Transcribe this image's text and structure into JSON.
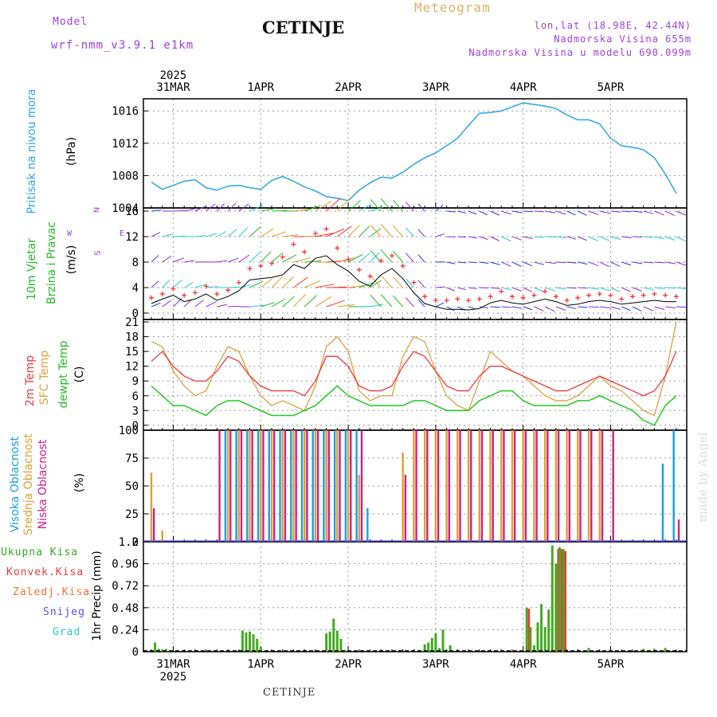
{
  "header": {
    "model_label": "Model",
    "model_name": "wrf-nmm_v3.9.1 e1km",
    "station": "CETINJE",
    "meteogram": "Meteogram",
    "lonlat": "lon,lat (18.98E, 42.44N)",
    "elev": "Nadmorska Visina 655m",
    "elev_model": "Nadmorska Visina u modelu 690.099m"
  },
  "footer": {
    "station": "CETINJE",
    "credit": "made by Angel"
  },
  "colors": {
    "pressure": "#2aa6e6",
    "wind_black": "#000000",
    "wind_gust": "#ff3030",
    "t2m": "#ee3a3a",
    "tsfc": "#e0a040",
    "dewpt": "#22cc22",
    "cloud_high": "#1aa0e6",
    "cloud_mid": "#e0a030",
    "cloud_low": "#d0208a",
    "precip_total": "#44aa22",
    "precip_conv": "#ee3a3a"
  },
  "axis": {
    "year": "2025",
    "day_labels_top": [
      "31MAR",
      "1APR",
      "2APR",
      "3APR",
      "4APR",
      "5APR"
    ],
    "day_labels_bottom": [
      "31MAR",
      "1APR",
      "2APR",
      "3APR",
      "4APR",
      "5APR"
    ]
  },
  "chart_data": [
    {
      "type": "line",
      "id": "pressure",
      "ylabel_main": "Pritisak na nivou mora",
      "ylabel_unit": "(hPa)",
      "ylim": [
        1004,
        1017.5
      ],
      "yticks": [
        "1004",
        "1008",
        "1012",
        "1016"
      ],
      "ytick_values": [
        1004,
        1008,
        1012,
        1016
      ],
      "x_hours": [
        0,
        3,
        6,
        9,
        12,
        15,
        18,
        21,
        24,
        27,
        30,
        33,
        36,
        39,
        42,
        45,
        48,
        51,
        54,
        57,
        60,
        63,
        66,
        69,
        72,
        75,
        78,
        81,
        84,
        87,
        90,
        93,
        96,
        99,
        102,
        105,
        108,
        111,
        114,
        117,
        120,
        123,
        126,
        129,
        132,
        135,
        138,
        141,
        144
      ],
      "series": [
        {
          "values": [
            1007.2,
            1006.3,
            1006.8,
            1007.3,
            1007.5,
            1006.5,
            1006.2,
            1006.7,
            1006.8,
            1006.5,
            1006.3,
            1007.4,
            1007.9,
            1007.3,
            1006.6,
            1006.1,
            1005.4,
            1005.2,
            1004.9,
            1006.2,
            1007.1,
            1007.8,
            1007.7,
            1008.4,
            1009.4,
            1010.2,
            1010.8,
            1011.7,
            1012.6,
            1014.2,
            1015.7,
            1015.8,
            1016.0,
            1016.5,
            1017.0,
            1016.8,
            1016.6,
            1016.3,
            1015.5,
            1014.9,
            1014.9,
            1014.4,
            1012.6,
            1011.7,
            1011.5,
            1011.2,
            1010.2,
            1008.2,
            1005.8
          ]
        }
      ]
    },
    {
      "type": "line",
      "id": "wind",
      "ylabel_main": "10m Vjetar",
      "ylabel_sub": "Brzina i Pravac",
      "ylabel_unit": "(m/s)",
      "compass": {
        "w": "W",
        "e": "E",
        "n": "N",
        "s": "S"
      },
      "ylim": [
        -1,
        16.5
      ],
      "yticks": [
        "0",
        "4",
        "8",
        "12",
        "16"
      ],
      "ytick_values": [
        0,
        4,
        8,
        12,
        16
      ],
      "x_hours": [
        0,
        3,
        6,
        9,
        12,
        15,
        18,
        21,
        24,
        27,
        30,
        33,
        36,
        39,
        42,
        45,
        48,
        51,
        54,
        57,
        60,
        63,
        66,
        69,
        72,
        75,
        78,
        81,
        84,
        87,
        90,
        93,
        96,
        99,
        102,
        105,
        108,
        111,
        114,
        117,
        120,
        123,
        126,
        129,
        132,
        135,
        138,
        141,
        144
      ],
      "series": [
        {
          "name": "speed",
          "values": [
            1.5,
            2.2,
            2.8,
            1.8,
            2.2,
            3.0,
            2.0,
            2.6,
            3.5,
            5.2,
            5.4,
            5.6,
            6.0,
            7.6,
            7.0,
            8.6,
            9.0,
            7.6,
            6.6,
            5.0,
            4.2,
            6.0,
            7.0,
            5.4,
            3.2,
            1.5,
            1.0,
            0.6,
            0.6,
            0.5,
            0.7,
            1.6,
            2.0,
            1.6,
            1.4,
            1.8,
            2.2,
            1.8,
            1.2,
            1.4,
            1.8,
            2.0,
            1.8,
            1.4,
            1.6,
            1.8,
            2.0,
            1.8,
            1.8
          ]
        },
        {
          "name": "gust",
          "values": [
            2.4,
            3.0,
            3.8,
            2.8,
            3.2,
            4.2,
            3.0,
            3.6,
            4.8,
            7.0,
            7.4,
            7.8,
            8.8,
            10.8,
            9.6,
            12.5,
            13.2,
            10.2,
            8.4,
            6.8,
            5.8,
            8.2,
            9.0,
            7.4,
            4.8,
            2.6,
            2.0,
            2.0,
            2.2,
            2.0,
            2.2,
            2.6,
            3.4,
            2.6,
            2.4,
            2.8,
            3.4,
            2.6,
            2.0,
            2.4,
            2.8,
            3.0,
            2.8,
            2.2,
            2.6,
            2.8,
            3.0,
            2.8,
            2.6
          ]
        }
      ]
    },
    {
      "type": "line",
      "id": "temperature",
      "ylabel_a": "2m Temp",
      "ylabel_b": "SFC Temp",
      "ylabel_c": "dewpt Temp",
      "ylabel_unit": "(C)",
      "ylim": [
        -1,
        21.5
      ],
      "yticks": [
        "0",
        "3",
        "6",
        "9",
        "12",
        "15",
        "18",
        "21"
      ],
      "ytick_values": [
        0,
        3,
        6,
        9,
        12,
        15,
        18,
        21
      ],
      "x_hours": [
        0,
        3,
        6,
        9,
        12,
        15,
        18,
        21,
        24,
        27,
        30,
        33,
        36,
        39,
        42,
        45,
        48,
        51,
        54,
        57,
        60,
        63,
        66,
        69,
        72,
        75,
        78,
        81,
        84,
        87,
        90,
        93,
        96,
        99,
        102,
        105,
        108,
        111,
        114,
        117,
        120,
        123,
        126,
        129,
        132,
        135,
        138,
        141,
        144
      ],
      "series": [
        {
          "name": "2m",
          "values": [
            13,
            15,
            12,
            10,
            9,
            9,
            11,
            14,
            13,
            10,
            8,
            7,
            7,
            7,
            6,
            9,
            14,
            14,
            12,
            8,
            7,
            7,
            8,
            12,
            15,
            14,
            11,
            8,
            7,
            7,
            10,
            12,
            12,
            11,
            10,
            9,
            8,
            7,
            7,
            8,
            9,
            10,
            9,
            8,
            7,
            6,
            7,
            10,
            15
          ]
        },
        {
          "name": "sfc",
          "values": [
            17,
            16,
            11,
            8,
            6,
            7,
            12,
            16,
            15,
            10,
            6,
            4,
            5,
            4,
            3,
            8,
            16,
            18,
            15,
            7,
            5,
            6,
            6,
            14,
            18,
            17,
            11,
            6,
            4,
            3,
            9,
            15,
            13,
            11,
            10,
            8,
            6,
            5,
            5,
            6,
            8,
            10,
            8,
            7,
            5,
            3,
            2,
            10,
            21
          ]
        },
        {
          "name": "dewpt",
          "values": [
            8,
            6,
            4,
            4,
            3,
            2,
            4,
            5,
            5,
            4,
            3,
            2,
            2,
            2,
            3,
            4,
            6,
            8,
            6,
            5,
            4,
            4,
            4,
            4,
            5,
            5,
            4,
            3,
            3,
            3,
            5,
            6,
            7,
            7,
            5,
            4,
            4,
            4,
            4,
            5,
            5,
            6,
            5,
            4,
            3,
            1,
            0,
            4,
            6
          ]
        }
      ]
    },
    {
      "type": "bar",
      "id": "clouds",
      "ylabel_a": "Visoka Oblacnost",
      "ylabel_b": "Srednja Oblacnost",
      "ylabel_c": "Niska Oblacnost",
      "ylabel_unit": "(%)",
      "ylim": [
        0,
        100
      ],
      "yticks": [
        "0",
        "25",
        "50",
        "75",
        "100"
      ],
      "ytick_values": [
        0,
        25,
        50,
        75,
        100
      ],
      "x_hours": [
        0,
        3,
        6,
        9,
        12,
        15,
        18,
        21,
        24,
        27,
        30,
        33,
        36,
        39,
        42,
        45,
        48,
        51,
        54,
        57,
        60,
        63,
        66,
        69,
        72,
        75,
        78,
        81,
        84,
        87,
        90,
        93,
        96,
        99,
        102,
        105,
        108,
        111,
        114,
        117,
        120,
        123,
        126,
        129,
        132,
        135,
        138,
        141,
        144
      ],
      "series": [
        {
          "name": "high",
          "values": [
            0,
            0,
            0,
            0,
            0,
            0,
            0,
            100,
            100,
            100,
            100,
            100,
            100,
            100,
            100,
            100,
            100,
            100,
            100,
            100,
            30,
            0,
            0,
            0,
            0,
            0,
            0,
            0,
            0,
            0,
            0,
            0,
            0,
            0,
            0,
            0,
            0,
            0,
            0,
            0,
            0,
            0,
            0,
            0,
            0,
            0,
            0,
            70,
            100
          ]
        },
        {
          "name": "mid",
          "values": [
            62,
            10,
            0,
            0,
            0,
            0,
            0,
            100,
            100,
            100,
            100,
            100,
            100,
            100,
            100,
            100,
            100,
            100,
            100,
            60,
            0,
            0,
            0,
            80,
            100,
            100,
            100,
            100,
            100,
            100,
            100,
            100,
            100,
            100,
            100,
            100,
            100,
            100,
            100,
            100,
            100,
            100,
            0,
            0,
            0,
            0,
            0,
            0,
            0
          ]
        },
        {
          "name": "low",
          "values": [
            30,
            0,
            0,
            0,
            0,
            0,
            100,
            100,
            100,
            100,
            100,
            100,
            100,
            100,
            100,
            100,
            100,
            100,
            100,
            100,
            0,
            0,
            0,
            60,
            100,
            100,
            100,
            100,
            100,
            100,
            100,
            100,
            100,
            100,
            100,
            100,
            100,
            100,
            100,
            100,
            100,
            100,
            100,
            0,
            0,
            0,
            0,
            0,
            20
          ]
        }
      ]
    },
    {
      "type": "bar",
      "id": "precip",
      "legend": [
        "Ukupna Kisa",
        "Konvek.Kisa",
        "Zaledj.Kisa",
        "Snijeg",
        "Grad"
      ],
      "legend_colors": [
        "#33aa22",
        "#ee3a3a",
        "#f07030",
        "#5050ee",
        "#22cccc"
      ],
      "ylabel_main": "1hr Precip (mm)",
      "ylim": [
        0,
        1.2
      ],
      "yticks": [
        "0",
        "0.24",
        "0.48",
        "0.72",
        "0.96",
        "1.2"
      ],
      "ytick_values": [
        0,
        0.24,
        0.48,
        0.72,
        0.96,
        1.2
      ],
      "x_hours": [
        1,
        2,
        3,
        4,
        5,
        25,
        26,
        27,
        28,
        29,
        30,
        48,
        49,
        50,
        51,
        52,
        53,
        75,
        76,
        77,
        78,
        79,
        80,
        81,
        82,
        83,
        103,
        104,
        105,
        106,
        107,
        108,
        109,
        110,
        111,
        112,
        113,
        114,
        115,
        116,
        120,
        135,
        138,
        141
      ],
      "series": [
        {
          "name": "total",
          "values": [
            0.1,
            0.03,
            0.02,
            0.03,
            0.01,
            0.23,
            0.21,
            0.22,
            0.19,
            0.14,
            0.05,
            0.2,
            0.22,
            0.36,
            0.23,
            0.14,
            0.02,
            0.08,
            0.1,
            0.15,
            0.2,
            0.04,
            0.24,
            0.02,
            0.07,
            0.0,
            0.48,
            0.27,
            0.07,
            0.32,
            0.52,
            0.27,
            0.46,
            1.16,
            0.96,
            1.14,
            1.12,
            0.0,
            0.0,
            0.0,
            0.04,
            0.03,
            0.03,
            0.04
          ]
        },
        {
          "name": "convective",
          "values": [
            0.0,
            0.0,
            0.0,
            0.0,
            0.0,
            0.0,
            0.0,
            0.0,
            0.0,
            0.0,
            0.0,
            0.0,
            0.0,
            0.0,
            0.0,
            0.0,
            0.0,
            0.0,
            0.0,
            0.0,
            0.0,
            0.0,
            0.0,
            0.0,
            0.0,
            0.0,
            0.47,
            0.0,
            0.0,
            0.0,
            0.0,
            0.0,
            0.0,
            0.0,
            1.12,
            1.12,
            1.1,
            0.0,
            0.0,
            0.0,
            0.0,
            0.0,
            0.0,
            0.0
          ]
        }
      ]
    }
  ]
}
